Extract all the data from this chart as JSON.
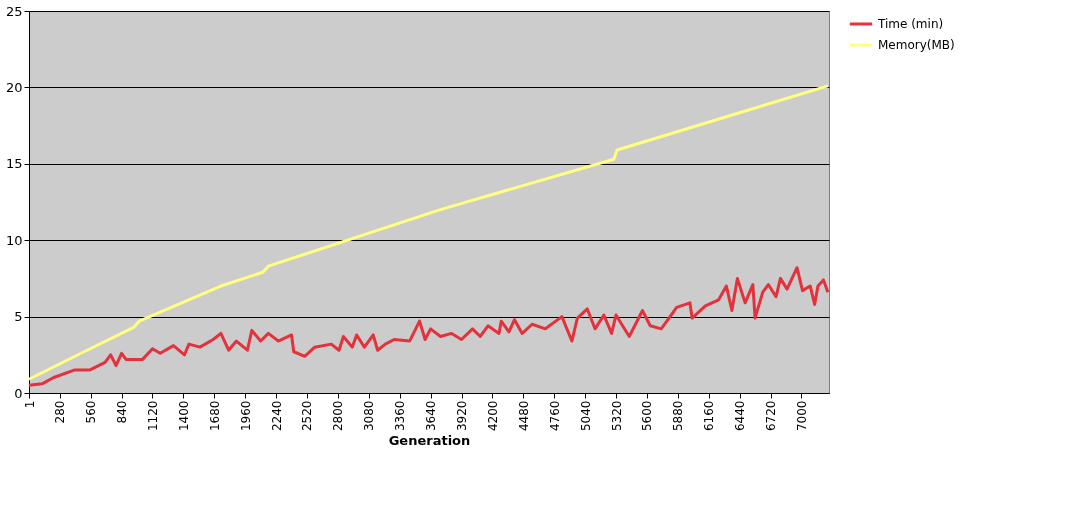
{
  "chart_data": {
    "type": "line",
    "xlabel": "Generation",
    "xlim": [
      1,
      7250
    ],
    "xticks": [
      1,
      280,
      560,
      840,
      1120,
      1400,
      1680,
      1960,
      2240,
      2520,
      2800,
      3080,
      3360,
      3640,
      3920,
      4200,
      4480,
      4760,
      5040,
      5320,
      5600,
      5880,
      6160,
      6440,
      6720,
      7000
    ],
    "ylim": [
      0,
      25
    ],
    "yticks": [
      0,
      5,
      10,
      15,
      20,
      25
    ],
    "grid": "y",
    "legend": "right",
    "marker": "none",
    "line_style": "solid",
    "series": [
      {
        "name": "Time (min)",
        "color": "#e3323c",
        "x": [
          1,
          120,
          220,
          410,
          550,
          690,
          740,
          790,
          840,
          880,
          1030,
          1120,
          1190,
          1310,
          1410,
          1450,
          1550,
          1670,
          1740,
          1810,
          1880,
          1980,
          2020,
          2100,
          2170,
          2260,
          2380,
          2400,
          2500,
          2590,
          2740,
          2810,
          2850,
          2930,
          2970,
          3040,
          3120,
          3160,
          3230,
          3310,
          3450,
          3540,
          3590,
          3640,
          3730,
          3830,
          3920,
          4020,
          4090,
          4160,
          4260,
          4280,
          4350,
          4400,
          4470,
          4560,
          4680,
          4830,
          4920,
          4970,
          5060,
          5130,
          5210,
          5280,
          5320,
          5440,
          5560,
          5630,
          5730,
          5870,
          5990,
          6010,
          6130,
          6250,
          6320,
          6370,
          6420,
          6490,
          6560,
          6580,
          6650,
          6700,
          6770,
          6810,
          6870,
          6960,
          7010,
          7080,
          7120,
          7150,
          7200,
          7240
        ],
        "values": [
          0.5,
          0.6,
          1.0,
          1.5,
          1.5,
          2.0,
          2.5,
          1.8,
          2.6,
          2.2,
          2.2,
          2.9,
          2.6,
          3.1,
          2.5,
          3.2,
          3.0,
          3.5,
          3.9,
          2.8,
          3.4,
          2.8,
          4.1,
          3.4,
          3.9,
          3.4,
          3.8,
          2.7,
          2.4,
          3.0,
          3.2,
          2.8,
          3.7,
          3.0,
          3.8,
          3.0,
          3.8,
          2.8,
          3.2,
          3.5,
          3.4,
          4.7,
          3.5,
          4.2,
          3.7,
          3.9,
          3.5,
          4.2,
          3.7,
          4.4,
          3.9,
          4.7,
          4.0,
          4.8,
          3.9,
          4.5,
          4.2,
          5.0,
          3.4,
          4.9,
          5.5,
          4.2,
          5.1,
          3.9,
          5.1,
          3.7,
          5.4,
          4.4,
          4.2,
          5.6,
          5.9,
          4.9,
          5.7,
          6.1,
          7.0,
          5.4,
          7.5,
          5.9,
          7.1,
          4.9,
          6.6,
          7.1,
          6.3,
          7.5,
          6.8,
          8.2,
          6.7,
          7.0,
          5.8,
          7.0,
          7.4,
          6.6
        ]
      },
      {
        "name": "Memory(MB)",
        "color": "#ffff80",
        "x": [
          1,
          500,
          950,
          1000,
          1740,
          2120,
          2170,
          3730,
          5300,
          5330,
          7240
        ],
        "values": [
          0.9,
          2.7,
          4.3,
          4.7,
          7.0,
          7.9,
          8.3,
          12.0,
          15.3,
          15.9,
          20.1
        ]
      }
    ]
  }
}
